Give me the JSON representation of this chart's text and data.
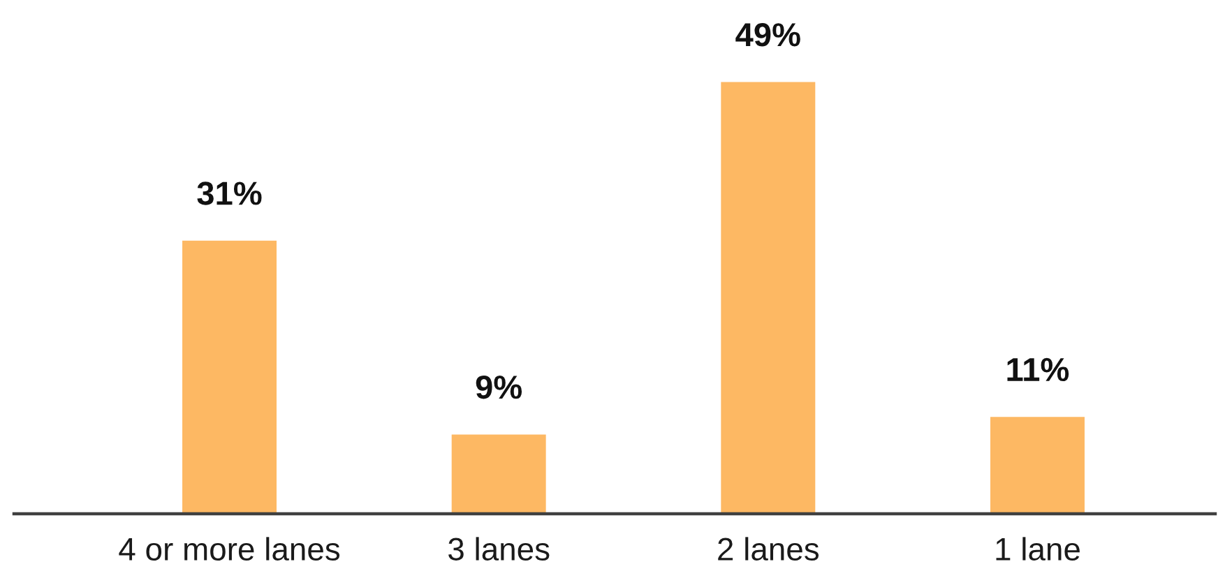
{
  "chart_data": {
    "type": "bar",
    "categories": [
      "4 or more lanes",
      "3 lanes",
      "2 lanes",
      "1 lane"
    ],
    "values": [
      31,
      9,
      49,
      11
    ],
    "value_labels": [
      "31%",
      "9%",
      "49%",
      "11%"
    ],
    "color": "#fdb863"
  }
}
